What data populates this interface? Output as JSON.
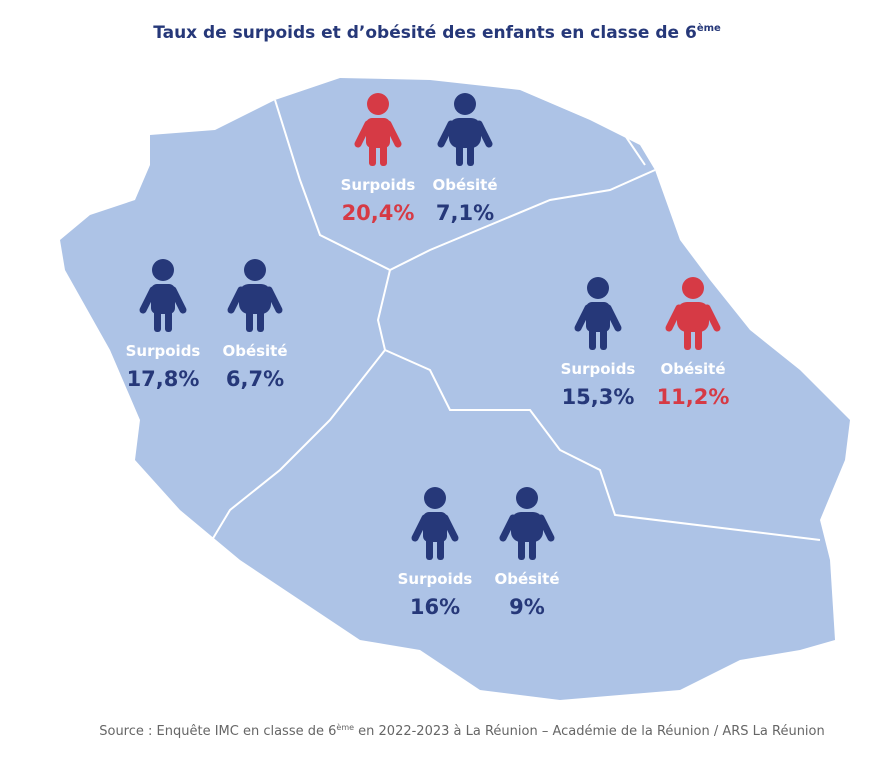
{
  "title": "Taux de surpoids et d’obésité des enfants en classe de 6",
  "title_sup": "ème",
  "regions": [
    {
      "indicators": [
        {
          "label": "Surpoids",
          "value": "20,4%",
          "color": "#d63a45"
        },
        {
          "label": "Obésité",
          "value": "7,1%",
          "color": "#263879"
        }
      ]
    },
    {
      "indicators": [
        {
          "label": "Surpoids",
          "value": "17,8%",
          "color": "#263879"
        },
        {
          "label": "Obésité",
          "value": "6,7%",
          "color": "#263879"
        }
      ]
    },
    {
      "indicators": [
        {
          "label": "Surpoids",
          "value": "15,3%",
          "color": "#263879"
        },
        {
          "label": "Obésité",
          "value": "11,2%",
          "color": "#d63a45"
        }
      ]
    },
    {
      "indicators": [
        {
          "label": "Surpoids",
          "value": "16%",
          "color": "#263879"
        },
        {
          "label": "Obésité",
          "value": "9%",
          "color": "#263879"
        }
      ]
    }
  ],
  "source": {
    "before": "Source : Enquête IMC en classe de 6",
    "sup": "ème",
    "after": " en 2022-2023 à La Réunion – Académie de la Réunion / ARS La Réunion"
  }
}
